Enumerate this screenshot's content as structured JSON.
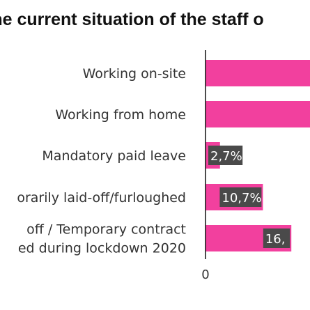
{
  "chart_data": {
    "type": "bar",
    "orientation": "horizontal",
    "title": "the current situation of the staff o",
    "categories": [
      [
        "Working on-site"
      ],
      [
        "Working from home"
      ],
      [
        "Mandatory paid leave"
      ],
      [
        "orarily laid-off/furloughed"
      ],
      [
        "off / Temporary contract",
        "ed during lockdown 2020"
      ]
    ],
    "values": [
      null,
      null,
      2.7,
      10.7,
      16.0
    ],
    "value_labels": [
      "",
      "",
      "2,7%",
      "10,7%",
      "16,"
    ],
    "x_ticks": [
      "0"
    ],
    "bar_color": "#f2409e",
    "label_box_color": "#4a4a4a"
  }
}
